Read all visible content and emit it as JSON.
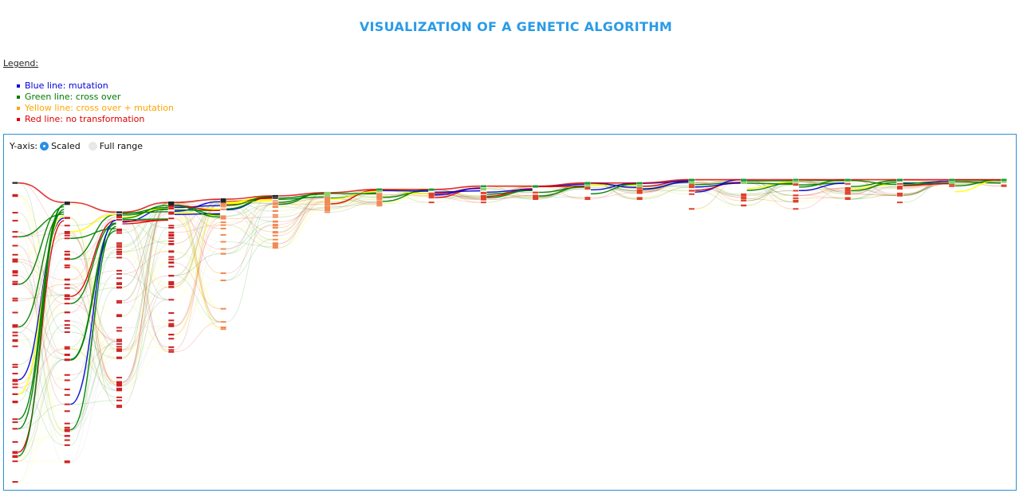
{
  "title": "VISUALIZATION OF A GENETIC ALGORITHM",
  "legend": {
    "heading": "Legend:",
    "items": [
      {
        "label": "Blue line: mutation",
        "color": "#0000dd"
      },
      {
        "label": "Green line: cross over",
        "color": "#007a00"
      },
      {
        "label": "Yellow line: cross over + mutation",
        "color": "#ffa500"
      },
      {
        "label": "Red line: no transformation",
        "color": "#dd0000"
      }
    ]
  },
  "controls": {
    "y_axis_label": "Y-axis:",
    "options": [
      {
        "label": "Scaled",
        "selected": true
      },
      {
        "label": "Full range",
        "selected": false
      }
    ]
  },
  "colors": {
    "title": "#2a9be8",
    "panel_border": "#2b8fd6",
    "mutation": "#0000dd",
    "crossover": "#008000",
    "crossover_mutation": "#ffff00",
    "no_transformation": "#dd0000"
  },
  "chart_data": {
    "type": "line",
    "axes_visible": false,
    "generations": 20,
    "y_scale": "scaled",
    "fitness_range_estimate": [
      0,
      100
    ],
    "best_fitness_per_generation": [
      92,
      86,
      83,
      86,
      87,
      88,
      89,
      90,
      90,
      91,
      91,
      92,
      92,
      93,
      93,
      93,
      93,
      93,
      93,
      93
    ],
    "max_fitness_per_generation": [
      0,
      6,
      23,
      40,
      47,
      72,
      83,
      85,
      86,
      86,
      87,
      87,
      87,
      84,
      85,
      84,
      87,
      86,
      91,
      91
    ]
  }
}
